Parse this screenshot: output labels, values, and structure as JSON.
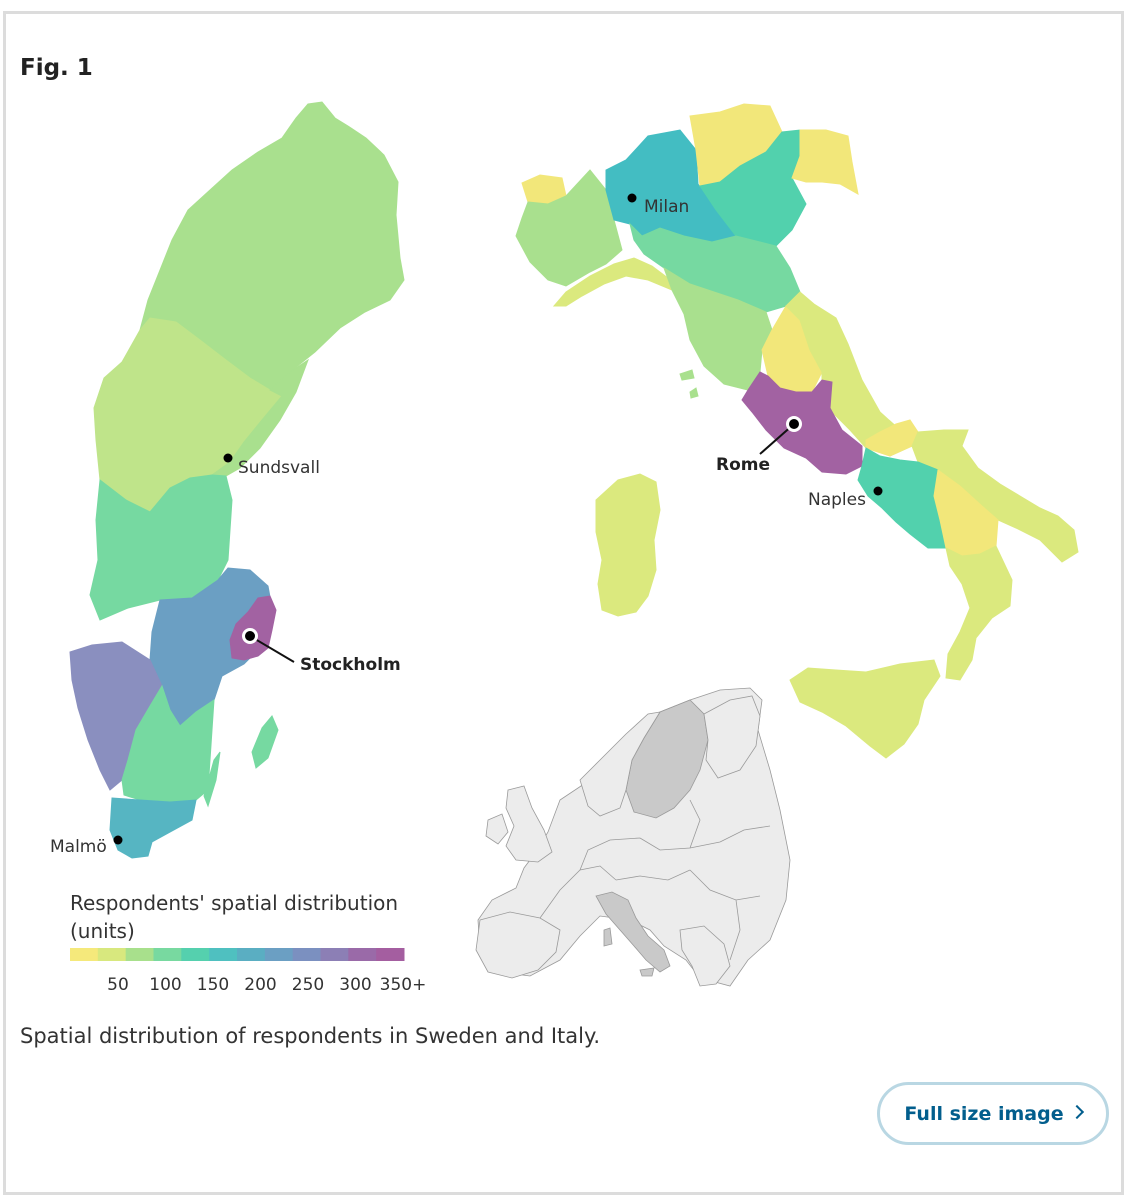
{
  "figure": {
    "label": "Fig. 1",
    "caption": "Spatial distribution of respondents in Sweden and Italy.",
    "full_size_label": "Full size image"
  },
  "map": {
    "cities": {
      "sundsvall": "Sundsvall",
      "stockholm": "Stockholm",
      "malmo": "Malmö",
      "milan": "Milan",
      "rome": "Rome",
      "naples": "Naples"
    },
    "legend": {
      "title_line1": "Respondents' spatial distribution",
      "title_line2": "(units)",
      "ticks": [
        "50",
        "100",
        "150",
        "200",
        "250",
        "300",
        "350+"
      ],
      "colors": [
        "#f5e97b",
        "#d8e87e",
        "#a8e08c",
        "#78d9a0",
        "#55d0ae",
        "#4fc0c0",
        "#5aaec2",
        "#6b9fc3",
        "#7b90c0",
        "#8c7fb5",
        "#9a6aa8",
        "#a45ea0"
      ]
    },
    "region_colors": {
      "yellow": "#f2e77a",
      "yellow_green": "#dbe97e",
      "light_green": "#a9e08e",
      "green": "#76d9a1",
      "teal_green": "#52d1ad",
      "teal": "#43bdc2",
      "blue": "#6b9fc3",
      "lavender": "#8a8fbf",
      "purple": "#a262a2",
      "europe_grey": "#ececec",
      "europe_highlight": "#c9c9c9"
    }
  }
}
